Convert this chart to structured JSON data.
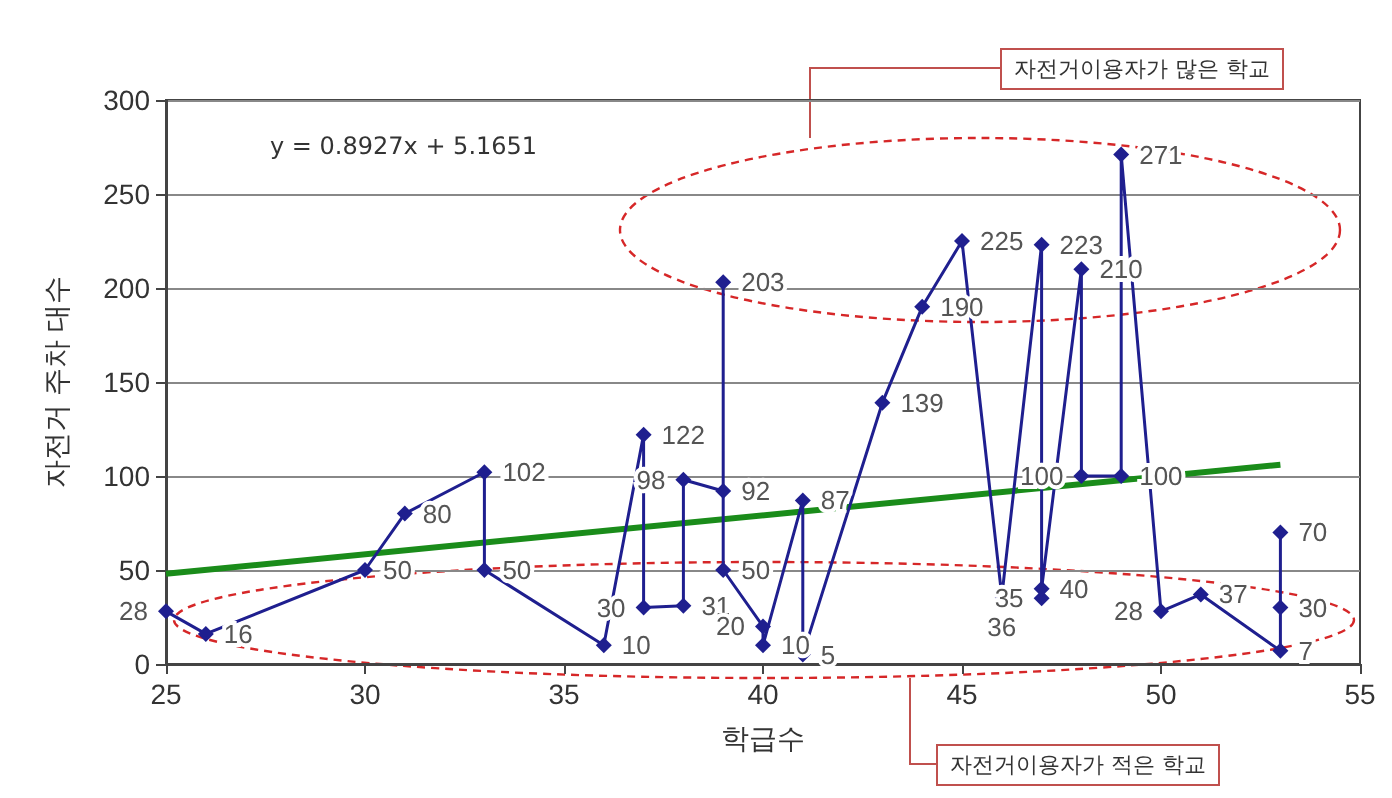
{
  "chart_data": {
    "type": "line",
    "xlabel": "학급수",
    "ylabel": "자전거 주차 대수",
    "xlim": [
      25,
      55
    ],
    "xticks": [
      25,
      30,
      35,
      40,
      45,
      50,
      55
    ],
    "ylim": [
      0,
      300
    ],
    "yticks": [
      0,
      50,
      100,
      150,
      200,
      250,
      300
    ],
    "grid": "y",
    "marker": "diamond",
    "series": [
      {
        "color": "#1f1f8f",
        "x": [
          25,
          26,
          30,
          31,
          33,
          33,
          36,
          37,
          37,
          38,
          38,
          39,
          39,
          39,
          40,
          40,
          41,
          41,
          43,
          44,
          45,
          46,
          47,
          47,
          47,
          48,
          48,
          49,
          49,
          50,
          51,
          53,
          53,
          53
        ],
        "values": [
          28,
          16,
          50,
          80,
          102,
          50,
          10,
          122,
          30,
          31,
          98,
          92,
          203,
          50,
          20,
          10,
          87,
          5,
          139,
          190,
          225,
          36,
          223,
          35,
          40,
          210,
          100,
          100,
          271,
          28,
          37,
          7,
          30,
          70
        ],
        "value_labels": [
          "28",
          "16",
          "50",
          "80",
          "102",
          "50",
          "10",
          "122",
          "30",
          "31",
          "98",
          "92",
          "203",
          "50",
          "20",
          "10",
          "87",
          "5",
          "139",
          "190",
          "225",
          "36",
          "223",
          "35",
          "40",
          "210",
          "100",
          "100",
          "271",
          "28",
          "37",
          "7",
          "30",
          "70"
        ]
      },
      {
        "type": "line",
        "color": "#1a8c1a",
        "marker": "none",
        "x": [
          25,
          53
        ],
        "values": [
          48,
          106
        ]
      }
    ],
    "annotations": [
      "y = 0.8927x  + 5.1651",
      "자전거이용자가 많은 학교",
      "자전거이용자가 적은 학교"
    ]
  }
}
